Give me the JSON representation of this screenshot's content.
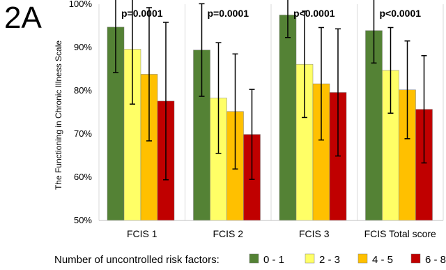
{
  "panel_label": "2A",
  "chart_data": {
    "type": "bar",
    "ylabel": "The Functioning in Chronic Illness Scale",
    "ylim": [
      50,
      100
    ],
    "yticks": [
      50,
      60,
      70,
      80,
      90,
      100
    ],
    "ytick_labels": [
      "50%",
      "60%",
      "70%",
      "80%",
      "90%",
      "100%"
    ],
    "categories": [
      "FCIS 1",
      "FCIS 2",
      "FCIS 3",
      "FCIS Total score"
    ],
    "annotations": [
      "p=0.0001",
      "p=0.0001",
      "p<0.0001",
      "p<0.0001"
    ],
    "legend_title": "Number of uncontrolled risk factors:",
    "legend_position": "bottom",
    "grid": "vertical",
    "series": [
      {
        "name": "0 - 1",
        "color": "#548235",
        "values": [
          94.7,
          89.4,
          97.5,
          93.9
        ],
        "errors": [
          10.5,
          10.7,
          5.2,
          7.5
        ]
      },
      {
        "name": "2 - 3",
        "color": "#ffff66",
        "values": [
          89.6,
          78.3,
          86.1,
          84.7
        ],
        "errors": [
          12.7,
          12.8,
          12.3,
          9.9
        ]
      },
      {
        "name": "4 - 5",
        "color": "#ffc000",
        "values": [
          83.8,
          75.2,
          81.6,
          80.2
        ],
        "errors": [
          15.4,
          13.3,
          13.0,
          11.3
        ]
      },
      {
        "name": "6 - 8",
        "color": "#c00000",
        "values": [
          77.6,
          69.9,
          79.6,
          75.7
        ],
        "errors": [
          18.2,
          10.4,
          14.7,
          12.4
        ]
      }
    ]
  }
}
